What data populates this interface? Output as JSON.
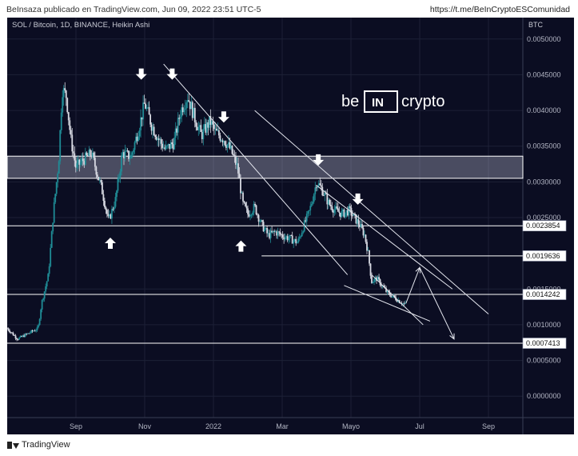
{
  "header": {
    "publisher": "BeInsaza publicado en TradingView.com, Jun 09, 2022 23:51 UTC-5",
    "link": "https://t.me/BeInCryptoESComunidad"
  },
  "footer": {
    "brand": "TradingView",
    "logo_icon": "tradingview-logo-icon"
  },
  "watermark": {
    "left": "be",
    "middle": "IN",
    "right": "crypto"
  },
  "chart_data": {
    "type": "candlestick",
    "title": "SOL / Bitcoin, 1D, BINANCE, Heikin Ashi",
    "currency": "BTC",
    "ylim": [
      -0.0003,
      0.0053
    ],
    "y_ticks": [
      "0.0050000",
      "0.0045000",
      "0.0040000",
      "0.0035000",
      "0.0030000",
      "0.0025000",
      "0.0015000",
      "0.0010000",
      "0.0005000",
      "0.0000000"
    ],
    "x_ticks": [
      "Sep",
      "Nov",
      "2022",
      "Mar",
      "Mayo",
      "Jul",
      "Sep"
    ],
    "x_tick_months": [
      2,
      4,
      6,
      8,
      10,
      12,
      14
    ],
    "xlim": [
      0.0,
      15.0
    ],
    "price_labels": [
      "0.0023854",
      "0.0019636",
      "0.0014242",
      "0.0007413"
    ],
    "horizontal_levels": [
      0.0023854,
      0.0019636,
      0.0014242,
      0.0007413
    ],
    "resistance_zone": [
      0.00305,
      0.00336
    ],
    "series_path": [
      {
        "m": 0.0,
        "v": 0.00095
      },
      {
        "m": 0.3,
        "v": 0.0008
      },
      {
        "m": 0.5,
        "v": 0.00085
      },
      {
        "m": 0.7,
        "v": 0.0009
      },
      {
        "m": 0.9,
        "v": 0.00095
      },
      {
        "m": 1.0,
        "v": 0.0013
      },
      {
        "m": 1.2,
        "v": 0.0017
      },
      {
        "m": 1.35,
        "v": 0.0026
      },
      {
        "m": 1.5,
        "v": 0.0033
      },
      {
        "m": 1.6,
        "v": 0.0043
      },
      {
        "m": 1.72,
        "v": 0.0042
      },
      {
        "m": 1.85,
        "v": 0.0036
      },
      {
        "m": 2.0,
        "v": 0.0032
      },
      {
        "m": 2.2,
        "v": 0.0033
      },
      {
        "m": 2.45,
        "v": 0.0034
      },
      {
        "m": 2.75,
        "v": 0.0029
      },
      {
        "m": 2.95,
        "v": 0.00245
      },
      {
        "m": 3.15,
        "v": 0.00275
      },
      {
        "m": 3.35,
        "v": 0.0034
      },
      {
        "m": 3.6,
        "v": 0.00335
      },
      {
        "m": 3.8,
        "v": 0.0037
      },
      {
        "m": 4.0,
        "v": 0.0041
      },
      {
        "m": 4.2,
        "v": 0.0038
      },
      {
        "m": 4.4,
        "v": 0.0036
      },
      {
        "m": 4.6,
        "v": 0.00345
      },
      {
        "m": 4.85,
        "v": 0.00355
      },
      {
        "m": 5.05,
        "v": 0.004
      },
      {
        "m": 5.25,
        "v": 0.0042
      },
      {
        "m": 5.45,
        "v": 0.0039
      },
      {
        "m": 5.65,
        "v": 0.00365
      },
      {
        "m": 5.9,
        "v": 0.00385
      },
      {
        "m": 6.05,
        "v": 0.0037
      },
      {
        "m": 6.3,
        "v": 0.0036
      },
      {
        "m": 6.5,
        "v": 0.00345
      },
      {
        "m": 6.7,
        "v": 0.0032
      },
      {
        "m": 6.85,
        "v": 0.0027
      },
      {
        "m": 7.0,
        "v": 0.00255
      },
      {
        "m": 7.2,
        "v": 0.00265
      },
      {
        "m": 7.4,
        "v": 0.0024
      },
      {
        "m": 7.6,
        "v": 0.00225
      },
      {
        "m": 7.8,
        "v": 0.0023
      },
      {
        "m": 8.0,
        "v": 0.00225
      },
      {
        "m": 8.25,
        "v": 0.0022
      },
      {
        "m": 8.45,
        "v": 0.00215
      },
      {
        "m": 8.6,
        "v": 0.00235
      },
      {
        "m": 8.8,
        "v": 0.0026
      },
      {
        "m": 9.0,
        "v": 0.003
      },
      {
        "m": 9.15,
        "v": 0.0029
      },
      {
        "m": 9.35,
        "v": 0.0027
      },
      {
        "m": 9.55,
        "v": 0.0026
      },
      {
        "m": 9.75,
        "v": 0.00255
      },
      {
        "m": 9.95,
        "v": 0.0026
      },
      {
        "m": 10.1,
        "v": 0.0025
      },
      {
        "m": 10.25,
        "v": 0.0024
      },
      {
        "m": 10.4,
        "v": 0.00225
      },
      {
        "m": 10.5,
        "v": 0.002
      },
      {
        "m": 10.6,
        "v": 0.0016
      },
      {
        "m": 10.75,
        "v": 0.00165
      },
      {
        "m": 10.9,
        "v": 0.00155
      },
      {
        "m": 11.05,
        "v": 0.00145
      },
      {
        "m": 11.2,
        "v": 0.0014
      },
      {
        "m": 11.35,
        "v": 0.00135
      },
      {
        "m": 11.5,
        "v": 0.0013
      },
      {
        "m": 11.6,
        "v": 0.00128
      }
    ],
    "trendlines": [
      {
        "from": [
          4.55,
          0.00465
        ],
        "to": [
          9.9,
          0.0017
        ]
      },
      {
        "from": [
          7.2,
          0.004
        ],
        "to": [
          14.0,
          0.00115
        ]
      },
      {
        "from": [
          9.0,
          0.00295
        ],
        "to": [
          12.95,
          0.0015
        ]
      },
      {
        "from": [
          9.8,
          0.00155
        ],
        "to": [
          12.3,
          0.00105
        ]
      },
      {
        "from": [
          10.6,
          0.0017
        ],
        "to": [
          12.1,
          0.001
        ]
      }
    ],
    "projection_arrows": [
      {
        "points": [
          [
            11.6,
            0.0013
          ],
          [
            12.0,
            0.0018
          ],
          [
            13.0,
            0.0008
          ]
        ]
      }
    ],
    "markers_down": [
      {
        "m": 3.9,
        "v": 0.00443
      },
      {
        "m": 4.8,
        "v": 0.00443
      },
      {
        "m": 6.3,
        "v": 0.00383
      },
      {
        "m": 9.05,
        "v": 0.00323
      },
      {
        "m": 10.2,
        "v": 0.00268
      }
    ],
    "markers_up": [
      {
        "m": 3.0,
        "v": 0.00222
      },
      {
        "m": 6.8,
        "v": 0.00218
      }
    ]
  }
}
